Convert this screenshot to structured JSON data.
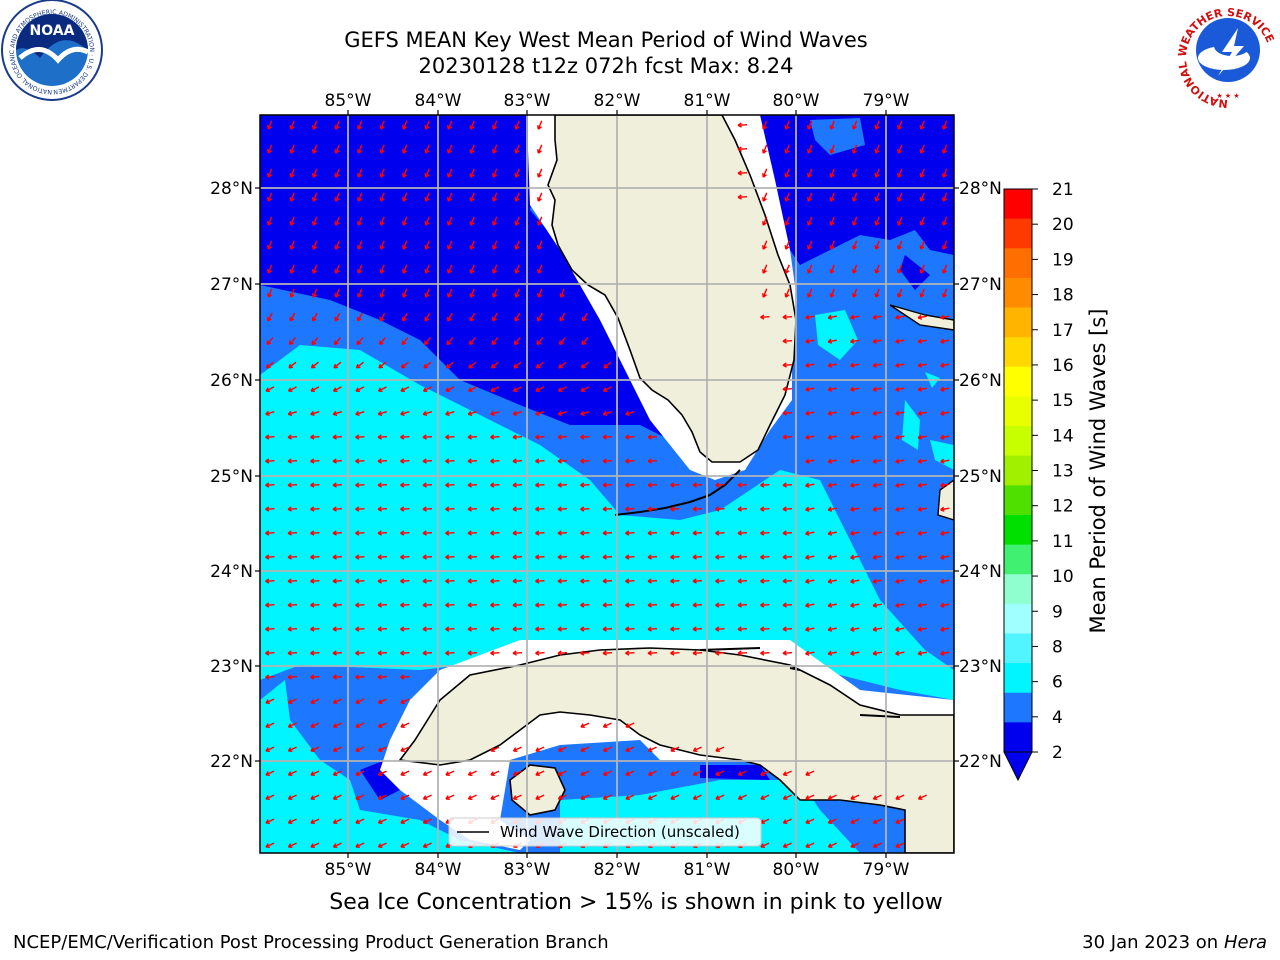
{
  "header": {
    "title_line1": "GEFS MEAN Key West Mean Period of Wind Waves",
    "title_line2": "20230128 t12z 072h fcst   Max: 8.24"
  },
  "logos": {
    "noaa_text": "NOAA",
    "noaa_ring": "NATIONAL OCEANIC AND ATMOSPHERIC ADMINISTRATION · U.S. DEPARTMENT OF COMMERCE",
    "nws_ring": "NATIONAL WEATHER SERVICE"
  },
  "map": {
    "lon_labels": [
      "85°W",
      "84°W",
      "83°W",
      "82°W",
      "81°W",
      "80°W",
      "79°W"
    ],
    "lat_labels": [
      "28°N",
      "27°N",
      "26°N",
      "25°N",
      "24°N",
      "23°N",
      "22°N"
    ],
    "legend_label": "Wind Wave Direction (unscaled)",
    "colors": {
      "level_2_4": "#0000ee",
      "level_4_6": "#1e78ff",
      "level_6_8": "#00f5ff",
      "land": "#efefdc",
      "arrow": "#ff0000"
    }
  },
  "colorbar": {
    "label": "Mean Period of Wind Waves [s]",
    "ticks": [
      "21",
      "20",
      "19",
      "18",
      "17",
      "16",
      "15",
      "14",
      "13",
      "12",
      "11",
      "10",
      "9",
      "8",
      "6",
      "4",
      "2"
    ],
    "colors": [
      "#ff0000",
      "#ff3a00",
      "#ff6e00",
      "#ff8c00",
      "#ffb400",
      "#ffd800",
      "#ffff00",
      "#e8ff00",
      "#c8ff00",
      "#a0f000",
      "#50e000",
      "#00e000",
      "#40f070",
      "#90ffd0",
      "#a0ffff",
      "#50f5ff",
      "#00f5ff",
      "#1e78ff",
      "#0000ee"
    ]
  },
  "note": "Sea Ice Concentration > 15% is shown in pink to yellow",
  "footer": {
    "left": "NCEP/EMC/Verification Post Processing Product Generation Branch",
    "right_date": "30 Jan 2023 on ",
    "right_host": "Hera"
  }
}
